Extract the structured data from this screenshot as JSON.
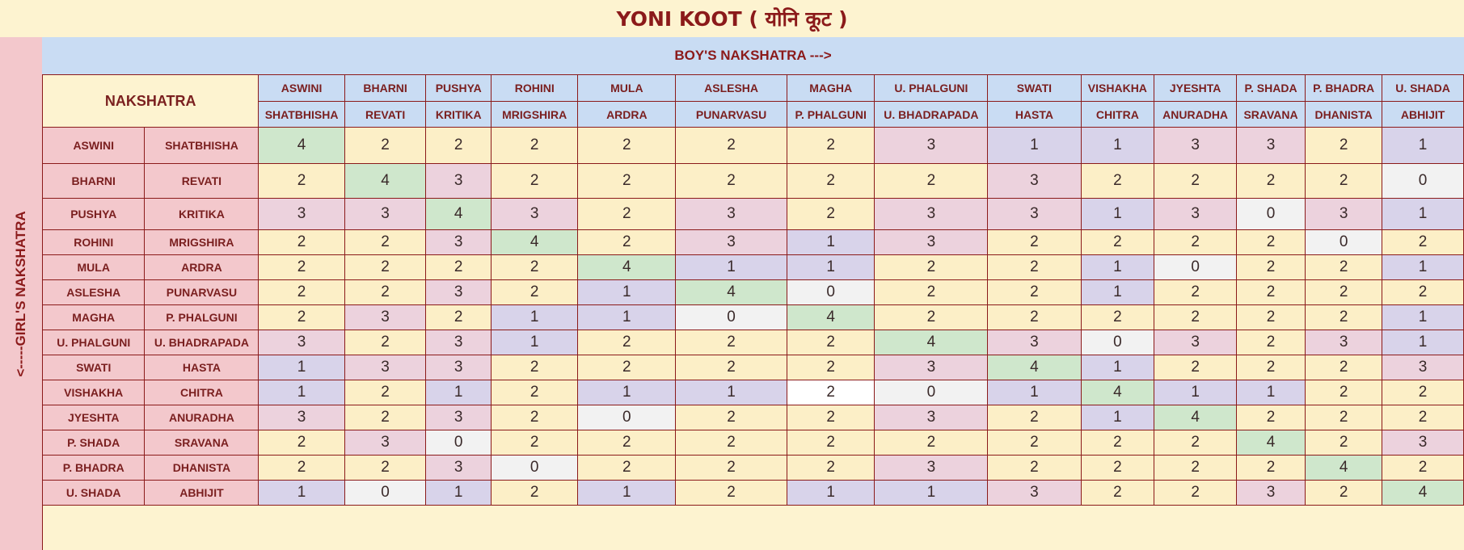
{
  "title": "YONI KOOT ( योनि कूट )",
  "boy_header": "BOY'S NAKSHATRA --->",
  "girl_header": "<-----GIRL'S NAKSHATRA",
  "corner_label": "NAKSHATRA",
  "columns": [
    {
      "top": "ASWINI",
      "bottom": "SHATBHISHA"
    },
    {
      "top": "BHARNI",
      "bottom": "REVATI"
    },
    {
      "top": "PUSHYA",
      "bottom": "KRITIKA"
    },
    {
      "top": "ROHINI",
      "bottom": "MRIGSHIRA"
    },
    {
      "top": "MULA",
      "bottom": "ARDRA"
    },
    {
      "top": "ASLESHA",
      "bottom": "PUNARVASU"
    },
    {
      "top": "MAGHA",
      "bottom": "P. PHALGUNI"
    },
    {
      "top": "U. PHALGUNI",
      "bottom": "U. BHADRAPADA"
    },
    {
      "top": "SWATI",
      "bottom": "HASTA"
    },
    {
      "top": "VISHAKHA",
      "bottom": "CHITRA"
    },
    {
      "top": "JYESHTA",
      "bottom": "ANURADHA"
    },
    {
      "top": "P. SHADA",
      "bottom": "SRAVANA"
    },
    {
      "top": "P. BHADRA",
      "bottom": "DHANISTA"
    },
    {
      "top": "U. SHADA",
      "bottom": "ABHIJIT"
    }
  ],
  "rows": [
    {
      "a": "ASWINI",
      "b": "SHATBHISHA",
      "values": [
        "4",
        "2",
        "2",
        "2",
        "2",
        "2",
        "2",
        "3",
        "1",
        "1",
        "3",
        "3",
        "2",
        "1"
      ]
    },
    {
      "a": "BHARNI",
      "b": "REVATI",
      "values": [
        "2",
        "4",
        "3",
        "2",
        "2",
        "2",
        "2",
        "2",
        "3",
        "2",
        "2",
        "2",
        "2",
        "0"
      ]
    },
    {
      "a": "PUSHYA",
      "b": "KRITIKA",
      "values": [
        "3",
        "3",
        "4",
        "3",
        "2",
        "3",
        "2",
        "3",
        "3",
        "1",
        "3",
        "0",
        "3",
        "1"
      ]
    },
    {
      "a": "ROHINI",
      "b": "MRIGSHIRA",
      "values": [
        "2",
        "2",
        "3",
        "4",
        "2",
        "3",
        "1",
        "3",
        "2",
        "2",
        "2",
        "2",
        "0",
        "2"
      ]
    },
    {
      "a": "MULA",
      "b": "ARDRA",
      "values": [
        "2",
        "2",
        "2",
        "2",
        "4",
        "1",
        "1",
        "2",
        "2",
        "1",
        "0",
        "2",
        "2",
        "1"
      ]
    },
    {
      "a": "ASLESHA",
      "b": "PUNARVASU",
      "values": [
        "2",
        "2",
        "3",
        "2",
        "1",
        "4",
        "0",
        "2",
        "2",
        "1",
        "2",
        "2",
        "2",
        "2"
      ]
    },
    {
      "a": "MAGHA",
      "b": "P. PHALGUNI",
      "values": [
        "2",
        "3",
        "2",
        "1",
        "1",
        "0",
        "4",
        "2",
        "2",
        "2",
        "2",
        "2",
        "2",
        "1"
      ]
    },
    {
      "a": "U. PHALGUNI",
      "b": "U. BHADRAPADA",
      "values": [
        "3",
        "2",
        "3",
        "1",
        "2",
        "2",
        "2",
        "4",
        "3",
        "0",
        "3",
        "2",
        "3",
        "1"
      ]
    },
    {
      "a": "SWATI",
      "b": "HASTA",
      "values": [
        "1",
        "3",
        "3",
        "2",
        "2",
        "2",
        "2",
        "3",
        "4",
        "1",
        "2",
        "2",
        "2",
        "3"
      ]
    },
    {
      "a": "VISHAKHA",
      "b": "CHITRA",
      "values": [
        "1",
        "2",
        "1",
        "2",
        "1",
        "1",
        "2",
        "0",
        "1",
        "4",
        "1",
        "1",
        "2",
        "2"
      ]
    },
    {
      "a": "JYESHTA",
      "b": "ANURADHA",
      "values": [
        "3",
        "2",
        "3",
        "2",
        "0",
        "2",
        "2",
        "3",
        "2",
        "1",
        "4",
        "2",
        "2",
        "2"
      ]
    },
    {
      "a": "P. SHADA",
      "b": "SRAVANA",
      "values": [
        "2",
        "3",
        "0",
        "2",
        "2",
        "2",
        "2",
        "2",
        "2",
        "2",
        "2",
        "4",
        "2",
        "3"
      ]
    },
    {
      "a": "P. BHADRA",
      "b": "DHANISTA",
      "values": [
        "2",
        "2",
        "3",
        "0",
        "2",
        "2",
        "2",
        "3",
        "2",
        "2",
        "2",
        "2",
        "4",
        "2"
      ]
    },
    {
      "a": "U. SHADA",
      "b": "ABHIJIT",
      "values": [
        "1",
        "0",
        "1",
        "2",
        "1",
        "2",
        "1",
        "1",
        "3",
        "2",
        "2",
        "3",
        "2",
        "4"
      ]
    }
  ],
  "cell_classes": [
    [
      "c4",
      "c2",
      "c2",
      "c2",
      "c2",
      "c2",
      "c2",
      "c3",
      "c1",
      "c1",
      "c3",
      "c3",
      "c2",
      "c1"
    ],
    [
      "c2",
      "c4",
      "c3",
      "c2",
      "c2",
      "c2",
      "c2",
      "c2",
      "c3",
      "c2",
      "c2",
      "c2",
      "c2",
      "c0"
    ],
    [
      "c3",
      "c3",
      "c4",
      "c3",
      "c2",
      "c3",
      "c2",
      "c3",
      "c3",
      "c1",
      "c3",
      "c0",
      "c3",
      "c1"
    ],
    [
      "c2",
      "c2",
      "c3",
      "c4",
      "c2",
      "c3",
      "c1",
      "c3",
      "c2",
      "c2",
      "c2",
      "c2",
      "c0",
      "c2"
    ],
    [
      "c2",
      "c2",
      "c2",
      "c2",
      "c4",
      "c1",
      "c1",
      "c2",
      "c2",
      "c1",
      "c0",
      "c2",
      "c2",
      "c1"
    ],
    [
      "c2",
      "c2",
      "c3",
      "c2",
      "c1",
      "c4",
      "c0",
      "c2",
      "c2",
      "c1",
      "c2",
      "c2",
      "c2",
      "c2"
    ],
    [
      "c2",
      "c3",
      "c2",
      "c1",
      "c1",
      "c0",
      "c4",
      "c2",
      "c2",
      "c2",
      "c2",
      "c2",
      "c2",
      "c1"
    ],
    [
      "c3",
      "c2",
      "c3",
      "c1",
      "c2",
      "c2",
      "c2",
      "c4",
      "c3",
      "c0",
      "c3",
      "c2",
      "c3",
      "c1"
    ],
    [
      "c1",
      "c3",
      "c3",
      "c2",
      "c2",
      "c2",
      "c2",
      "c3",
      "c4",
      "c1",
      "c2",
      "c2",
      "c2",
      "c3"
    ],
    [
      "c1",
      "c2",
      "c1",
      "c2",
      "c1",
      "c1",
      "cw",
      "c0",
      "c1",
      "c4",
      "c1",
      "c1",
      "c2",
      "c2"
    ],
    [
      "c3",
      "c2",
      "c3",
      "c2",
      "c0",
      "c2",
      "c2",
      "c3",
      "c2",
      "c1",
      "c4",
      "c2",
      "c2",
      "c2"
    ],
    [
      "c2",
      "c3",
      "c0",
      "c2",
      "c2",
      "c2",
      "c2",
      "c2",
      "c2",
      "c2",
      "c2",
      "c4",
      "c2",
      "c3"
    ],
    [
      "c2",
      "c2",
      "c3",
      "c0",
      "c2",
      "c2",
      "c2",
      "c3",
      "c2",
      "c2",
      "c2",
      "c2",
      "c4",
      "c2"
    ],
    [
      "c1",
      "c0",
      "c1",
      "c2",
      "c1",
      "c2",
      "c1",
      "c1",
      "c3",
      "c2",
      "c2",
      "c3",
      "c2",
      "c4"
    ]
  ],
  "colors": {
    "header_text": "#8b1a1a",
    "boy_header_bg": "#c9dcf3",
    "girl_header_bg": "#f3c8cc",
    "score_4": "#cfe7cc",
    "score_3": "#ecd2dd",
    "score_2": "#fcefc7",
    "score_1": "#d8d3ea",
    "score_0": "#f2f2f2"
  }
}
